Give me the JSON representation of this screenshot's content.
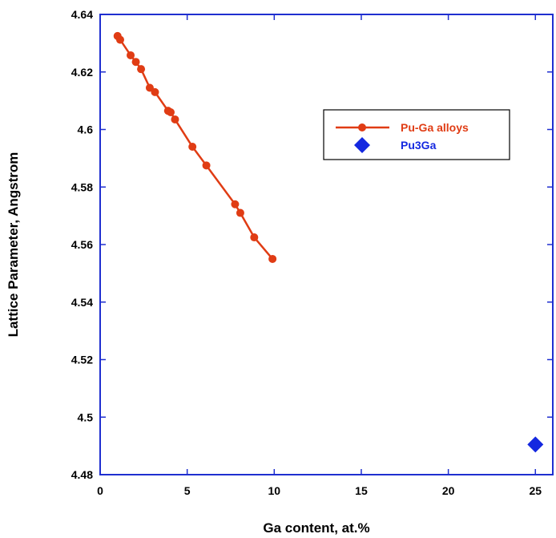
{
  "chart_data": {
    "type": "scatter",
    "xlabel": "Ga content, at.%",
    "ylabel": "Lattice Parameter, Angstrom",
    "xlim": [
      0,
      26
    ],
    "ylim": [
      4.48,
      4.64
    ],
    "x_ticks": [
      0,
      5,
      10,
      15,
      20,
      25
    ],
    "y_ticks": [
      4.48,
      4.5,
      4.52,
      4.54,
      4.56,
      4.58,
      4.6,
      4.62,
      4.64
    ],
    "x_tick_labels": [
      "0",
      "5",
      "10",
      "15",
      "20",
      "25"
    ],
    "y_tick_labels": [
      "4.48",
      "4.5",
      "4.52",
      "4.54",
      "4.56",
      "4.58",
      "4.6",
      "4.62",
      "4.64"
    ],
    "legend_position": "upper-right",
    "series": [
      {
        "name": "Pu-Ga alloys",
        "mode": "line+markers",
        "color": "#e03c14",
        "marker": "circle",
        "x": [
          1.0,
          1.15,
          1.75,
          2.05,
          2.35,
          2.85,
          3.15,
          3.9,
          4.05,
          4.3,
          5.3,
          6.1,
          7.75,
          8.05,
          8.85,
          9.9
        ],
        "y": [
          4.6325,
          4.6312,
          4.6258,
          4.6235,
          4.621,
          4.6145,
          4.613,
          4.6065,
          4.606,
          4.6035,
          4.594,
          4.5875,
          4.574,
          4.571,
          4.5625,
          4.555
        ]
      },
      {
        "name": "Pu3Ga",
        "mode": "markers",
        "color": "#1428e0",
        "marker": "diamond",
        "x": [
          25.0
        ],
        "y": [
          4.4905
        ]
      }
    ]
  }
}
